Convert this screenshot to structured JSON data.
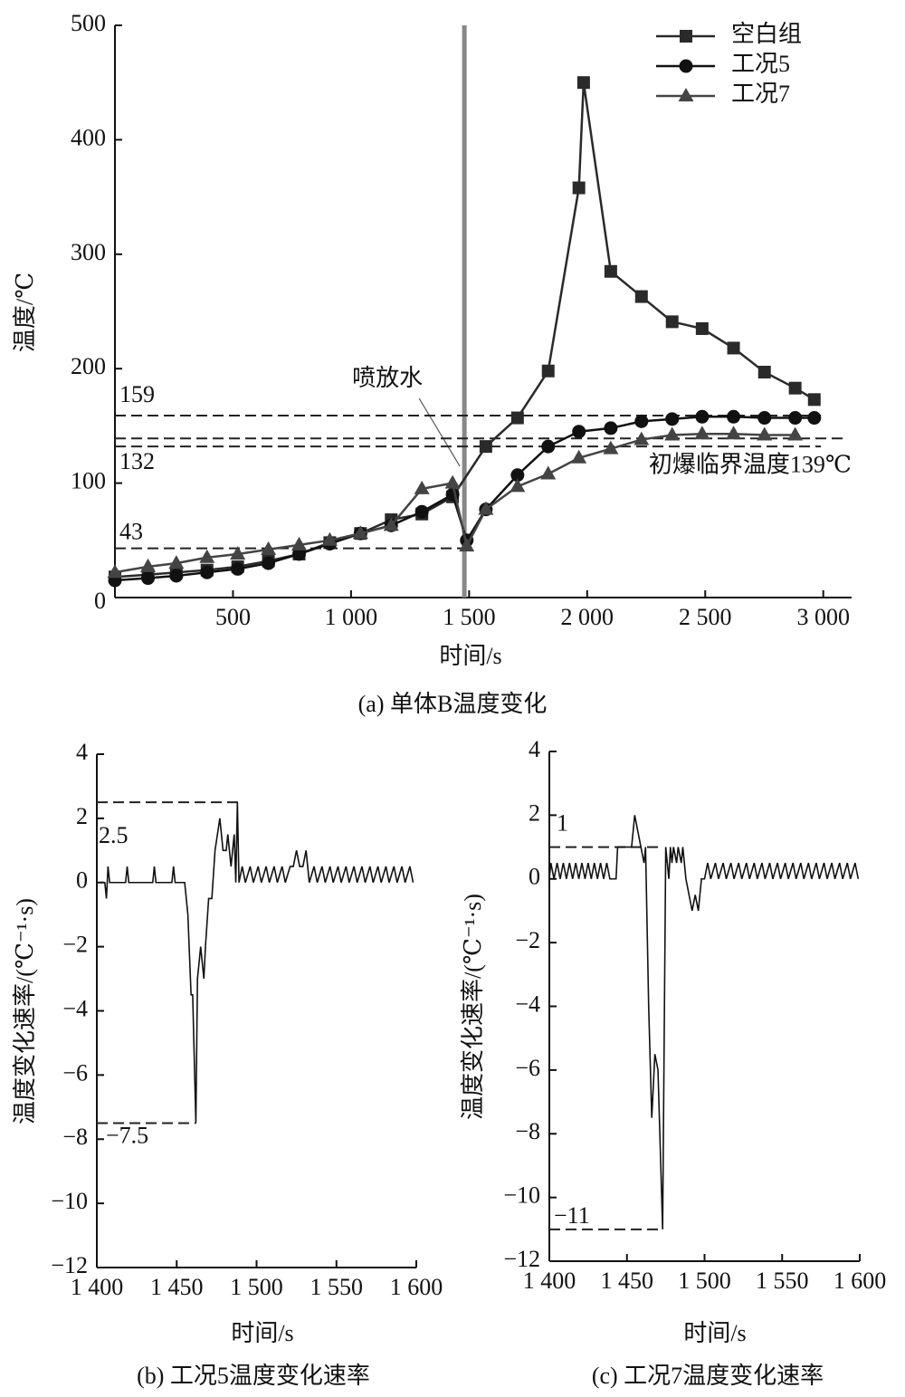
{
  "chart_data": [
    {
      "type": "line",
      "title": "(a) 单体B温度变化",
      "xlabel": "时间/s",
      "ylabel": "温度/℃",
      "xlim": [
        0,
        3120
      ],
      "ylim": [
        0,
        500
      ],
      "xticks": [
        500,
        {
          "value": 1000,
          "label": "1 000"
        },
        {
          "value": 1500,
          "label": "1 500"
        },
        {
          "value": 2000,
          "label": "2 000"
        },
        {
          "value": 2500,
          "label": "2 500"
        },
        {
          "value": 3000,
          "label": "3 000"
        }
      ],
      "yticks": [
        0,
        100,
        200,
        300,
        400,
        500
      ],
      "legend": "upper right",
      "series": [
        {
          "name": "空白组",
          "color": "#2a2a2a",
          "marker": "square",
          "x": [
            0,
            140,
            260,
            390,
            520,
            650,
            780,
            910,
            1040,
            1170,
            1300,
            1430,
            1571,
            1705,
            1835,
            1965,
            1985,
            2100,
            2230,
            2360,
            2487,
            2620,
            2751,
            2881,
            2962
          ],
          "values": [
            18,
            20,
            22,
            24,
            27,
            32,
            38,
            48,
            56,
            68,
            73,
            88,
            132,
            157,
            198,
            358,
            450,
            285,
            263,
            241,
            235,
            218,
            197,
            183,
            173
          ]
        },
        {
          "name": "工况5",
          "color": "#111111",
          "marker": "circle",
          "x": [
            0,
            140,
            260,
            390,
            520,
            650,
            780,
            910,
            1040,
            1170,
            1300,
            1430,
            1490,
            1571,
            1705,
            1835,
            1965,
            2100,
            2230,
            2360,
            2487,
            2620,
            2751,
            2881,
            2962
          ],
          "values": [
            15,
            17,
            19,
            22,
            25,
            30,
            38,
            47,
            56,
            63,
            75,
            90,
            50,
            77,
            107,
            132,
            145,
            148,
            154,
            156,
            158,
            158,
            157,
            157,
            157
          ]
        },
        {
          "name": "工况7",
          "color": "#444444",
          "marker": "triangle",
          "x": [
            0,
            140,
            260,
            390,
            520,
            650,
            780,
            910,
            1040,
            1170,
            1300,
            1430,
            1490,
            1571,
            1705,
            1835,
            1965,
            2100,
            2230,
            2360,
            2487,
            2620,
            2751,
            2881
          ],
          "values": [
            22,
            27,
            30,
            35,
            38,
            42,
            46,
            50,
            56,
            63,
            95,
            100,
            45,
            77,
            97,
            108,
            122,
            130,
            138,
            142,
            143,
            143,
            142,
            142
          ]
        }
      ],
      "hlines": [
        {
          "value": 159,
          "x": [
            0,
            2990
          ]
        },
        {
          "value": 132,
          "x": [
            0,
            2990
          ]
        },
        {
          "value": 43,
          "x": [
            0,
            1500
          ]
        },
        {
          "value": 139,
          "label": "初爆临界温度139℃",
          "x": [
            0,
            3100
          ]
        }
      ],
      "vlines": [
        1480
      ],
      "annotation": "喷放水"
    },
    {
      "type": "line",
      "title": "(b) 工况5温度变化速率",
      "xlabel": "时间/s",
      "ylabel": "温度变化速率/(℃⁻¹·s)",
      "xlim": [
        1400,
        1600
      ],
      "ylim": [
        -12,
        4
      ],
      "xticks": [
        {
          "value": 1400,
          "label": "1 400"
        },
        {
          "value": 1450,
          "label": "1 450"
        },
        {
          "value": 1500,
          "label": "1 500"
        },
        {
          "value": 1550,
          "label": "1 550"
        },
        {
          "value": 1600,
          "label": "1 600"
        }
      ],
      "yticks": [
        {
          "value": -12,
          "label": "−12"
        },
        {
          "value": -10,
          "label": "−10"
        },
        {
          "value": -8,
          "label": "−8"
        },
        {
          "value": -6,
          "label": "−6"
        },
        {
          "value": -4,
          "label": "−4"
        },
        {
          "value": -2,
          "label": "−2"
        },
        0,
        2,
        4
      ],
      "series": [
        {
          "color": "#111111",
          "x": [
            1400,
            1405,
            1406,
            1407,
            1408,
            1418,
            1419,
            1420,
            1435,
            1436,
            1437,
            1447,
            1448,
            1449,
            1455,
            1457,
            1459,
            1460,
            1462,
            1463,
            1465,
            1467,
            1468,
            1470,
            1472,
            1474,
            1477,
            1479,
            1481,
            1482,
            1484,
            1486,
            1487,
            1488,
            1489,
            1491,
            1493,
            1496,
            1498,
            1501,
            1503,
            1506,
            1508,
            1511,
            1513,
            1516,
            1518,
            1521,
            1523,
            1525,
            1527,
            1529,
            1531,
            1533,
            1536,
            1538,
            1541,
            1543,
            1546,
            1548,
            1551,
            1553,
            1556,
            1558,
            1561,
            1563,
            1566,
            1568,
            1571,
            1573,
            1576,
            1578,
            1581,
            1583,
            1586,
            1588,
            1591,
            1593,
            1596,
            1598
          ],
          "values": [
            0,
            0,
            -0.5,
            0.5,
            0,
            0,
            0.5,
            0,
            0,
            0.5,
            0,
            0,
            0.5,
            0,
            0,
            -1,
            -3.5,
            -3.5,
            -7.5,
            -3,
            -2,
            -3,
            -2,
            -0.5,
            -0.5,
            1,
            2,
            1,
            1,
            1.5,
            0.5,
            1.5,
            0,
            2.5,
            0,
            0.5,
            0,
            0.5,
            0,
            0.5,
            0,
            0.5,
            0,
            0.5,
            0,
            0.5,
            0,
            0.5,
            0.5,
            1,
            0.5,
            0.5,
            1,
            0,
            0.5,
            0,
            0.5,
            0,
            0.5,
            0,
            0.5,
            0,
            0.5,
            0,
            0.5,
            0,
            0.5,
            0,
            0.5,
            0,
            0.5,
            0,
            0.5,
            0,
            0.5,
            0,
            0.5,
            0,
            0.5,
            0
          ]
        }
      ],
      "hlines": [
        {
          "value": 2.5,
          "x": [
            1400,
            1490
          ]
        },
        {
          "value": -7.5,
          "label": "−7.5",
          "x": [
            1400,
            1462
          ]
        }
      ]
    },
    {
      "type": "line",
      "title": "(c) 工况7温度变化速率",
      "xlabel": "时间/s",
      "ylabel": "温度变化速率/(℃⁻¹·s)",
      "xlim": [
        1400,
        1600
      ],
      "ylim": [
        -12,
        4
      ],
      "xticks": [
        {
          "value": 1400,
          "label": "1 400"
        },
        {
          "value": 1450,
          "label": "1 450"
        },
        {
          "value": 1500,
          "label": "1 500"
        },
        {
          "value": 1550,
          "label": "1 550"
        },
        {
          "value": 1600,
          "label": "1 600"
        }
      ],
      "yticks": [
        {
          "value": -12,
          "label": "−12"
        },
        {
          "value": -10,
          "label": "−10"
        },
        {
          "value": -8,
          "label": "−8"
        },
        {
          "value": -6,
          "label": "−6"
        },
        {
          "value": -4,
          "label": "−4"
        },
        {
          "value": -2,
          "label": "−2"
        },
        0,
        2,
        4
      ],
      "series": [
        {
          "color": "#111111",
          "x": [
            1400,
            1401,
            1403,
            1405,
            1407,
            1409,
            1411,
            1413,
            1415,
            1417,
            1419,
            1421,
            1423,
            1425,
            1427,
            1429,
            1431,
            1433,
            1435,
            1437,
            1439,
            1443,
            1444,
            1453,
            1455,
            1457,
            1459,
            1461,
            1462,
            1464,
            1466,
            1468,
            1470,
            1473,
            1475,
            1477,
            1478,
            1479,
            1480,
            1482,
            1483,
            1485,
            1486,
            1488,
            1490,
            1492,
            1494,
            1496,
            1498,
            1500,
            1502,
            1504,
            1507,
            1509,
            1512,
            1514,
            1517,
            1519,
            1522,
            1524,
            1527,
            1529,
            1532,
            1534,
            1537,
            1539,
            1542,
            1544,
            1547,
            1549,
            1552,
            1554,
            1557,
            1559,
            1562,
            1564,
            1567,
            1569,
            1572,
            1574,
            1577,
            1579,
            1582,
            1584,
            1587,
            1589,
            1592,
            1594,
            1597,
            1599
          ],
          "values": [
            0,
            0.5,
            0,
            0.5,
            0,
            0.5,
            0,
            0.5,
            0,
            0.5,
            0,
            0.5,
            0,
            0.5,
            0,
            0.5,
            0,
            0.5,
            0,
            0.5,
            0,
            0,
            1,
            1,
            2,
            1.5,
            1,
            0.5,
            1,
            -4,
            -7.5,
            -5.5,
            -6,
            -11,
            1,
            0,
            1,
            0.5,
            1,
            0.5,
            1,
            0.5,
            1,
            0,
            -0.5,
            -1,
            -0.5,
            -1,
            0,
            0,
            0.5,
            0,
            0.5,
            0,
            0.5,
            0,
            0.5,
            0,
            0.5,
            0,
            0.5,
            0,
            0.5,
            0,
            0.5,
            0,
            0.5,
            0,
            0.5,
            0,
            0.5,
            0,
            0.5,
            0,
            0.5,
            0,
            0.5,
            0,
            0.5,
            0,
            0.5,
            0,
            0.5,
            0,
            0.5,
            0,
            0.5,
            0,
            0.5,
            0
          ]
        }
      ],
      "hlines": [
        {
          "value": 1,
          "x": [
            1400,
            1473
          ]
        },
        {
          "value": -11,
          "label": "−11",
          "x": [
            1400,
            1473
          ]
        }
      ]
    }
  ]
}
